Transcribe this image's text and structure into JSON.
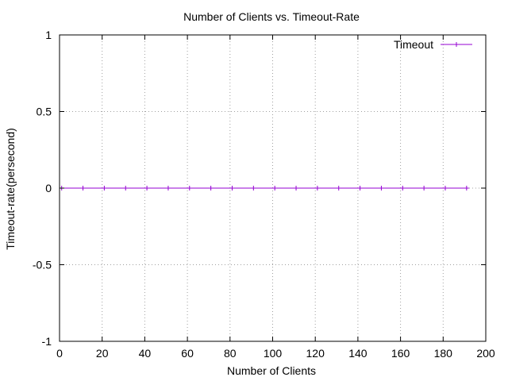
{
  "chart_data": {
    "type": "line",
    "title": "Number of Clients vs. Timeout-Rate",
    "xlabel": "Number of Clients",
    "ylabel": "Timeout-rate(persecond)",
    "xlim": [
      0,
      200
    ],
    "ylim": [
      -1,
      1
    ],
    "xticks": [
      0,
      20,
      40,
      60,
      80,
      100,
      120,
      140,
      160,
      180,
      200
    ],
    "yticks": [
      -1,
      -0.5,
      0,
      0.5,
      1
    ],
    "ytick_labels": [
      "-1",
      "-0.5",
      "0",
      "0.5",
      "1"
    ],
    "grid": true,
    "legend_position": "top-right",
    "series": [
      {
        "name": "Timeout",
        "color": "#9400d3",
        "marker": "plus",
        "x": [
          1,
          11,
          21,
          31,
          41,
          51,
          61,
          71,
          81,
          91,
          101,
          111,
          121,
          131,
          141,
          151,
          161,
          171,
          181,
          191
        ],
        "y": [
          0,
          0,
          0,
          0,
          0,
          0,
          0,
          0,
          0,
          0,
          0,
          0,
          0,
          0,
          0,
          0,
          0,
          0,
          0,
          0
        ]
      }
    ]
  }
}
